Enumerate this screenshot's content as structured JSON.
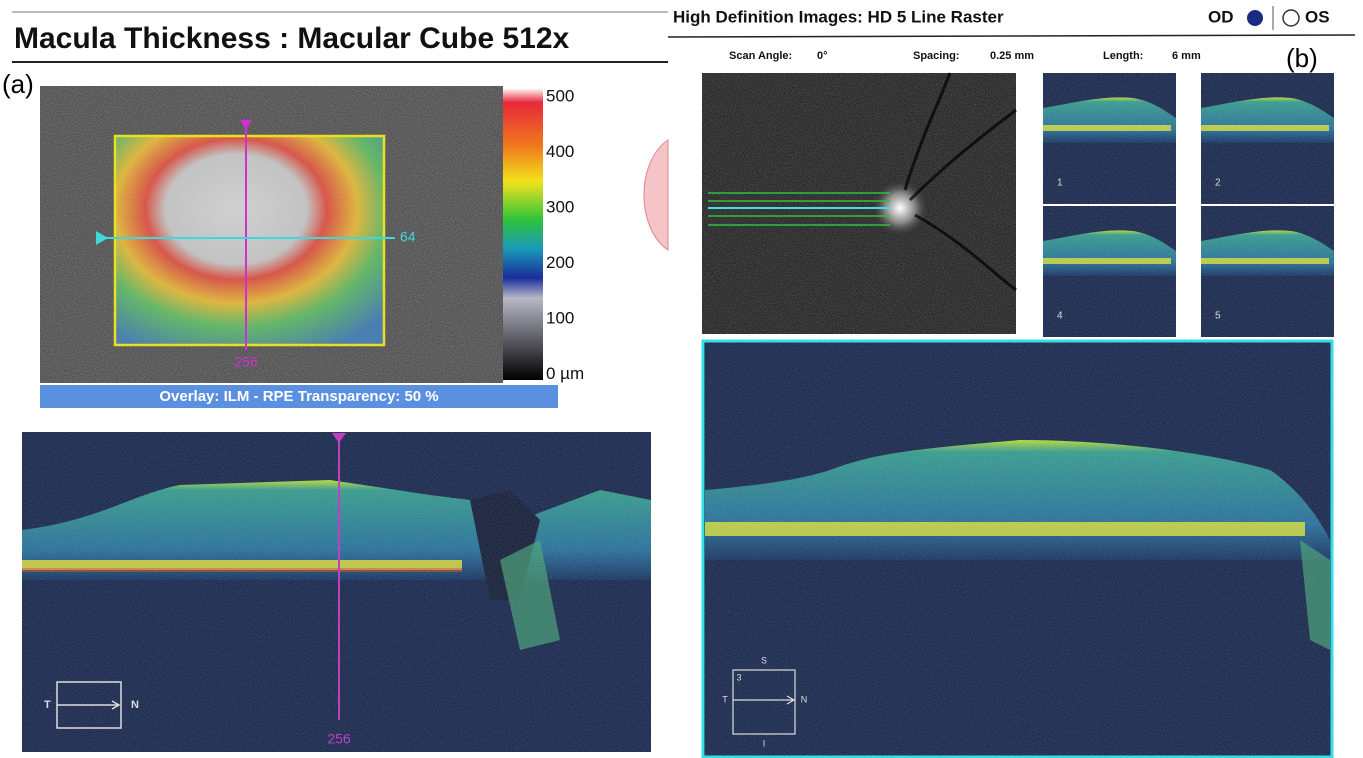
{
  "panel_a": {
    "label": "(a)",
    "title": "Macula Thickness : Macular Cube 512x",
    "scale_labels": [
      "500",
      "400",
      "300",
      "200",
      "100",
      "0 µm"
    ],
    "line_label_h": "64",
    "line_label_v": "256",
    "overlay": "Overlay: ILM - RPE  Transparency: 50 %",
    "bscan": {
      "left": "T",
      "right": "N",
      "marker": "256"
    }
  },
  "panel_b": {
    "label": "(b)",
    "title": "High Definition Images: HD 5 Line Raster",
    "eye_od": "OD",
    "eye_os": "OS",
    "scan_angle_label": "Scan Angle:",
    "scan_angle": "0°",
    "spacing_label": "Spacing:",
    "spacing": "0.25 mm",
    "length_label": "Length:",
    "length": "6 mm",
    "thumbnails": [
      "1",
      "2",
      "4",
      "5"
    ],
    "compass": {
      "top": "S",
      "left": "T",
      "right": "N",
      "bottom": "I",
      "corner": "3"
    }
  }
}
